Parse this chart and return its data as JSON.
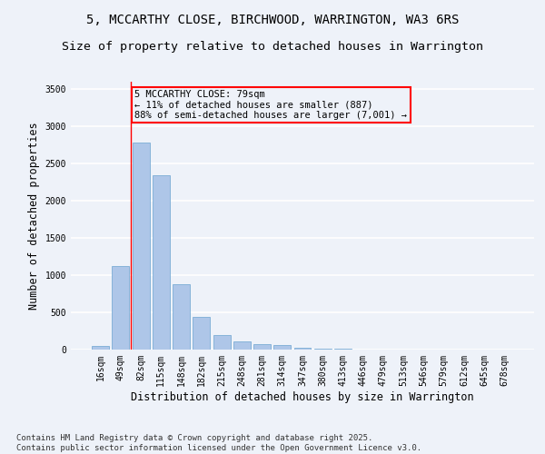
{
  "title_line1": "5, MCCARTHY CLOSE, BIRCHWOOD, WARRINGTON, WA3 6RS",
  "title_line2": "Size of property relative to detached houses in Warrington",
  "xlabel": "Distribution of detached houses by size in Warrington",
  "ylabel": "Number of detached properties",
  "categories": [
    "16sqm",
    "49sqm",
    "82sqm",
    "115sqm",
    "148sqm",
    "182sqm",
    "215sqm",
    "248sqm",
    "281sqm",
    "314sqm",
    "347sqm",
    "380sqm",
    "413sqm",
    "446sqm",
    "479sqm",
    "513sqm",
    "546sqm",
    "579sqm",
    "612sqm",
    "645sqm",
    "678sqm"
  ],
  "values": [
    50,
    1120,
    2780,
    2340,
    880,
    440,
    200,
    105,
    75,
    55,
    30,
    15,
    8,
    3,
    2,
    1,
    0,
    0,
    0,
    0,
    0
  ],
  "bar_color": "#aec6e8",
  "bar_edge_color": "#6ba3d0",
  "vline_x": 1.5,
  "vline_color": "red",
  "annotation_text": "5 MCCARTHY CLOSE: 79sqm\n← 11% of detached houses are smaller (887)\n88% of semi-detached houses are larger (7,001) →",
  "annotation_box_color": "red",
  "background_color": "#eef2f9",
  "grid_color": "#ffffff",
  "ylim": [
    0,
    3600
  ],
  "yticks": [
    0,
    500,
    1000,
    1500,
    2000,
    2500,
    3000,
    3500
  ],
  "footer_line1": "Contains HM Land Registry data © Crown copyright and database right 2025.",
  "footer_line2": "Contains public sector information licensed under the Open Government Licence v3.0.",
  "title_fontsize": 10,
  "subtitle_fontsize": 9.5,
  "axis_label_fontsize": 8.5,
  "tick_fontsize": 7,
  "annotation_fontsize": 7.5,
  "footer_fontsize": 6.5
}
